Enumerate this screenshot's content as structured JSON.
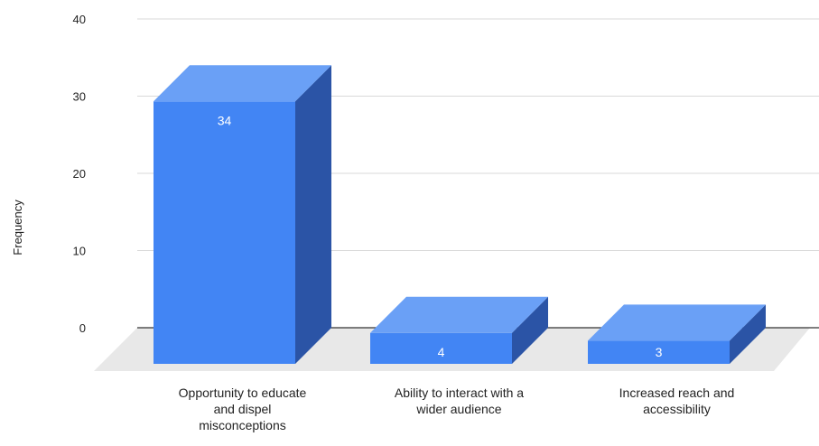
{
  "chart_data": {
    "type": "bar",
    "style": "3d",
    "title": "",
    "xlabel": "",
    "ylabel": "Frequency",
    "ylim": [
      0,
      40
    ],
    "yticks": [
      0,
      10,
      20,
      30,
      40
    ],
    "grid": true,
    "categories": [
      [
        "Opportunity to educate",
        "and dispel",
        "misconceptions"
      ],
      [
        "Ability to interact with a",
        "wider audience"
      ],
      [
        "Increased reach and",
        "accessibility"
      ]
    ],
    "values": [
      34,
      4,
      3
    ],
    "data_labels": [
      "34",
      "4",
      "3"
    ],
    "colors": {
      "bar_front": "#4285f4",
      "bar_top": "#6aa0f6",
      "bar_side": "#2b54a6",
      "floor": "#e8e8e8",
      "grid": "#d9d9d9",
      "axis": "#333333",
      "text": "#222222",
      "label": "#ffffff"
    }
  }
}
